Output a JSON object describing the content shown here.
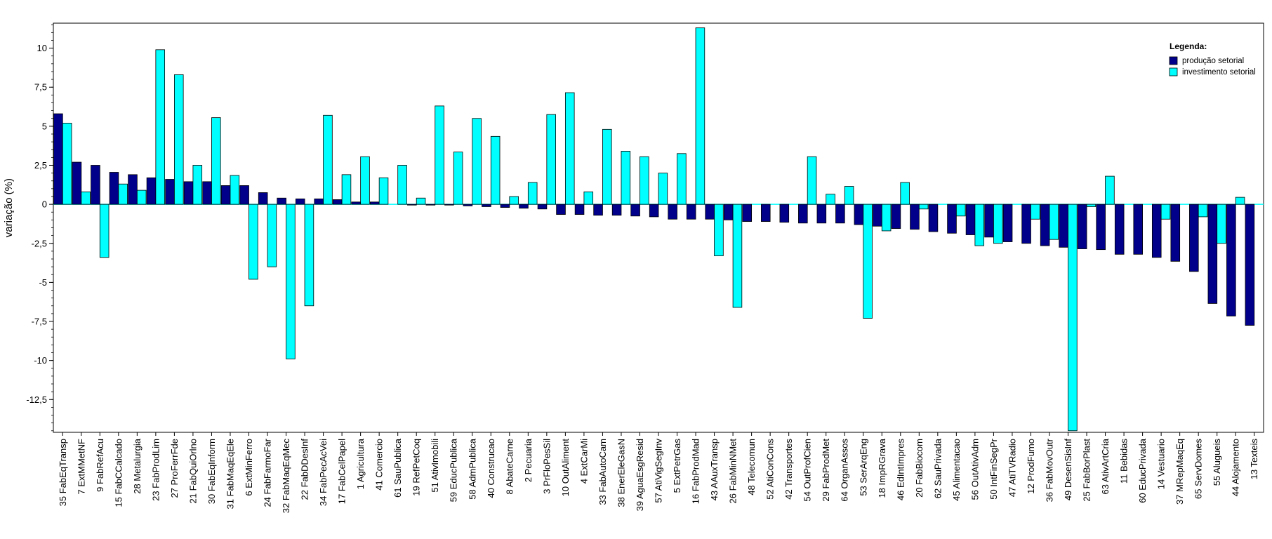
{
  "chart_data": {
    "type": "bar",
    "title": "",
    "xlabel": "",
    "ylabel": "variação (%)",
    "ylim": [
      -14.6,
      11.6
    ],
    "yticks": [
      10,
      7.5,
      5,
      2.5,
      0,
      -2.5,
      -5,
      -7.5,
      -10,
      -12.5
    ],
    "ytick_labels": [
      "10",
      "7,5",
      "5",
      "2,5",
      "0",
      "-2,5",
      "-5",
      "-7,5",
      "-10",
      "-12,5"
    ],
    "legend": {
      "title": "Legenda:",
      "placement": "top-right"
    },
    "colors": {
      "producao": "#00008B",
      "investimento": "#00FFFF",
      "zero_line": "#00FFFF",
      "bar_edge": "#000000"
    },
    "categories": [
      "35 FabEqTransp",
      "7 ExtMMetNF",
      "9 FabRefAcu",
      "15 FabCCalcado",
      "28 Metalurgia",
      "23 FabProdLim",
      "27 ProFerrFde",
      "21 FabQuiOrlno",
      "30 FabEqInform",
      "31 FabMaqEqEle",
      "6 ExtMinFerro",
      "24 FabFarmoFar",
      "32 FabMaqEqMec",
      "22 FabDDesInf",
      "34 FabPecAcVei",
      "17 FabCelPapel",
      "1 Agricultura",
      "41 Comercio",
      "61 SauPublica",
      "19 RefPetCoq",
      "51 AtivImobili",
      "59 EducPublica",
      "58 AdmPublica",
      "40 Construcao",
      "8 AbateCarne",
      "2 Pecuaria",
      "3 PrFloPesSil",
      "10 OutAliment",
      "4 ExtCarMi",
      "33 FabAutoCam",
      "38 EnerEleGasN",
      "39 AguaEsgResid",
      "57 AtiVigSegInv",
      "5 ExtPetrGas",
      "16 FabProdMad",
      "43 AAuxTransp",
      "26 FabMinNMet",
      "48 Telecomun",
      "52 AtiConCons",
      "42 Transportes",
      "54 OutProfCien",
      "29 FabProdMet",
      "64 OrganAssos",
      "53 SerArqEng",
      "18 ImpRGrava",
      "46 EdIntImpres",
      "20 FabBiocom",
      "62 SauPrivada",
      "45 Alimentacao",
      "56 OutAtivAdm",
      "50 IntFinSegPr",
      "47 AtiTVRadio",
      "12 ProdFumo",
      "36 FabMovOutr",
      "49 DesenSisInf",
      "25 FabBorPlast",
      "63 AtivArtCria",
      "11 Bebidas",
      "60 EducPrivada",
      "14 Vestuario",
      "37 MRepMaqEq",
      "65 ServDomes",
      "55 Alugueis",
      "44 Alojamento",
      "13 Texteis"
    ],
    "series": [
      {
        "name": "produção setorial",
        "values": [
          5.8,
          2.7,
          2.5,
          2.05,
          1.9,
          1.7,
          1.6,
          1.45,
          1.45,
          1.2,
          1.2,
          0.75,
          0.4,
          0.35,
          0.35,
          0.3,
          0.15,
          0.15,
          0.0,
          -0.05,
          -0.05,
          -0.05,
          -0.1,
          -0.15,
          -0.2,
          -0.25,
          -0.3,
          -0.65,
          -0.65,
          -0.7,
          -0.7,
          -0.75,
          -0.8,
          -0.95,
          -0.95,
          -0.95,
          -1.0,
          -1.1,
          -1.1,
          -1.15,
          -1.2,
          -1.2,
          -1.2,
          -1.3,
          -1.4,
          -1.55,
          -1.6,
          -1.75,
          -1.85,
          -1.95,
          -2.1,
          -2.4,
          -2.5,
          -2.65,
          -2.75,
          -2.85,
          -2.9,
          -3.2,
          -3.2,
          -3.4,
          -3.65,
          -4.3,
          -6.35,
          -7.15,
          -7.75
        ]
      },
      {
        "name": "investimento setorial",
        "values": [
          5.2,
          0.8,
          -3.4,
          1.3,
          0.9,
          9.9,
          8.3,
          2.5,
          5.55,
          1.85,
          -4.8,
          -4.0,
          -9.9,
          -6.5,
          5.7,
          1.9,
          3.05,
          1.7,
          2.5,
          0.4,
          6.3,
          3.35,
          5.5,
          4.35,
          0.5,
          1.4,
          5.75,
          7.15,
          0.8,
          4.8,
          3.4,
          3.05,
          2.0,
          3.25,
          11.3,
          -3.3,
          -6.6,
          0.0,
          0.0,
          0.0,
          3.05,
          0.65,
          1.15,
          -7.3,
          -1.7,
          1.4,
          -0.3,
          0.0,
          -0.75,
          -2.65,
          -2.5,
          0.0,
          -0.95,
          -2.25,
          -14.5,
          -0.15,
          1.8,
          0.0,
          0.0,
          -0.95,
          0.0,
          -0.8,
          -2.5,
          0.45,
          0.0
        ]
      }
    ]
  }
}
